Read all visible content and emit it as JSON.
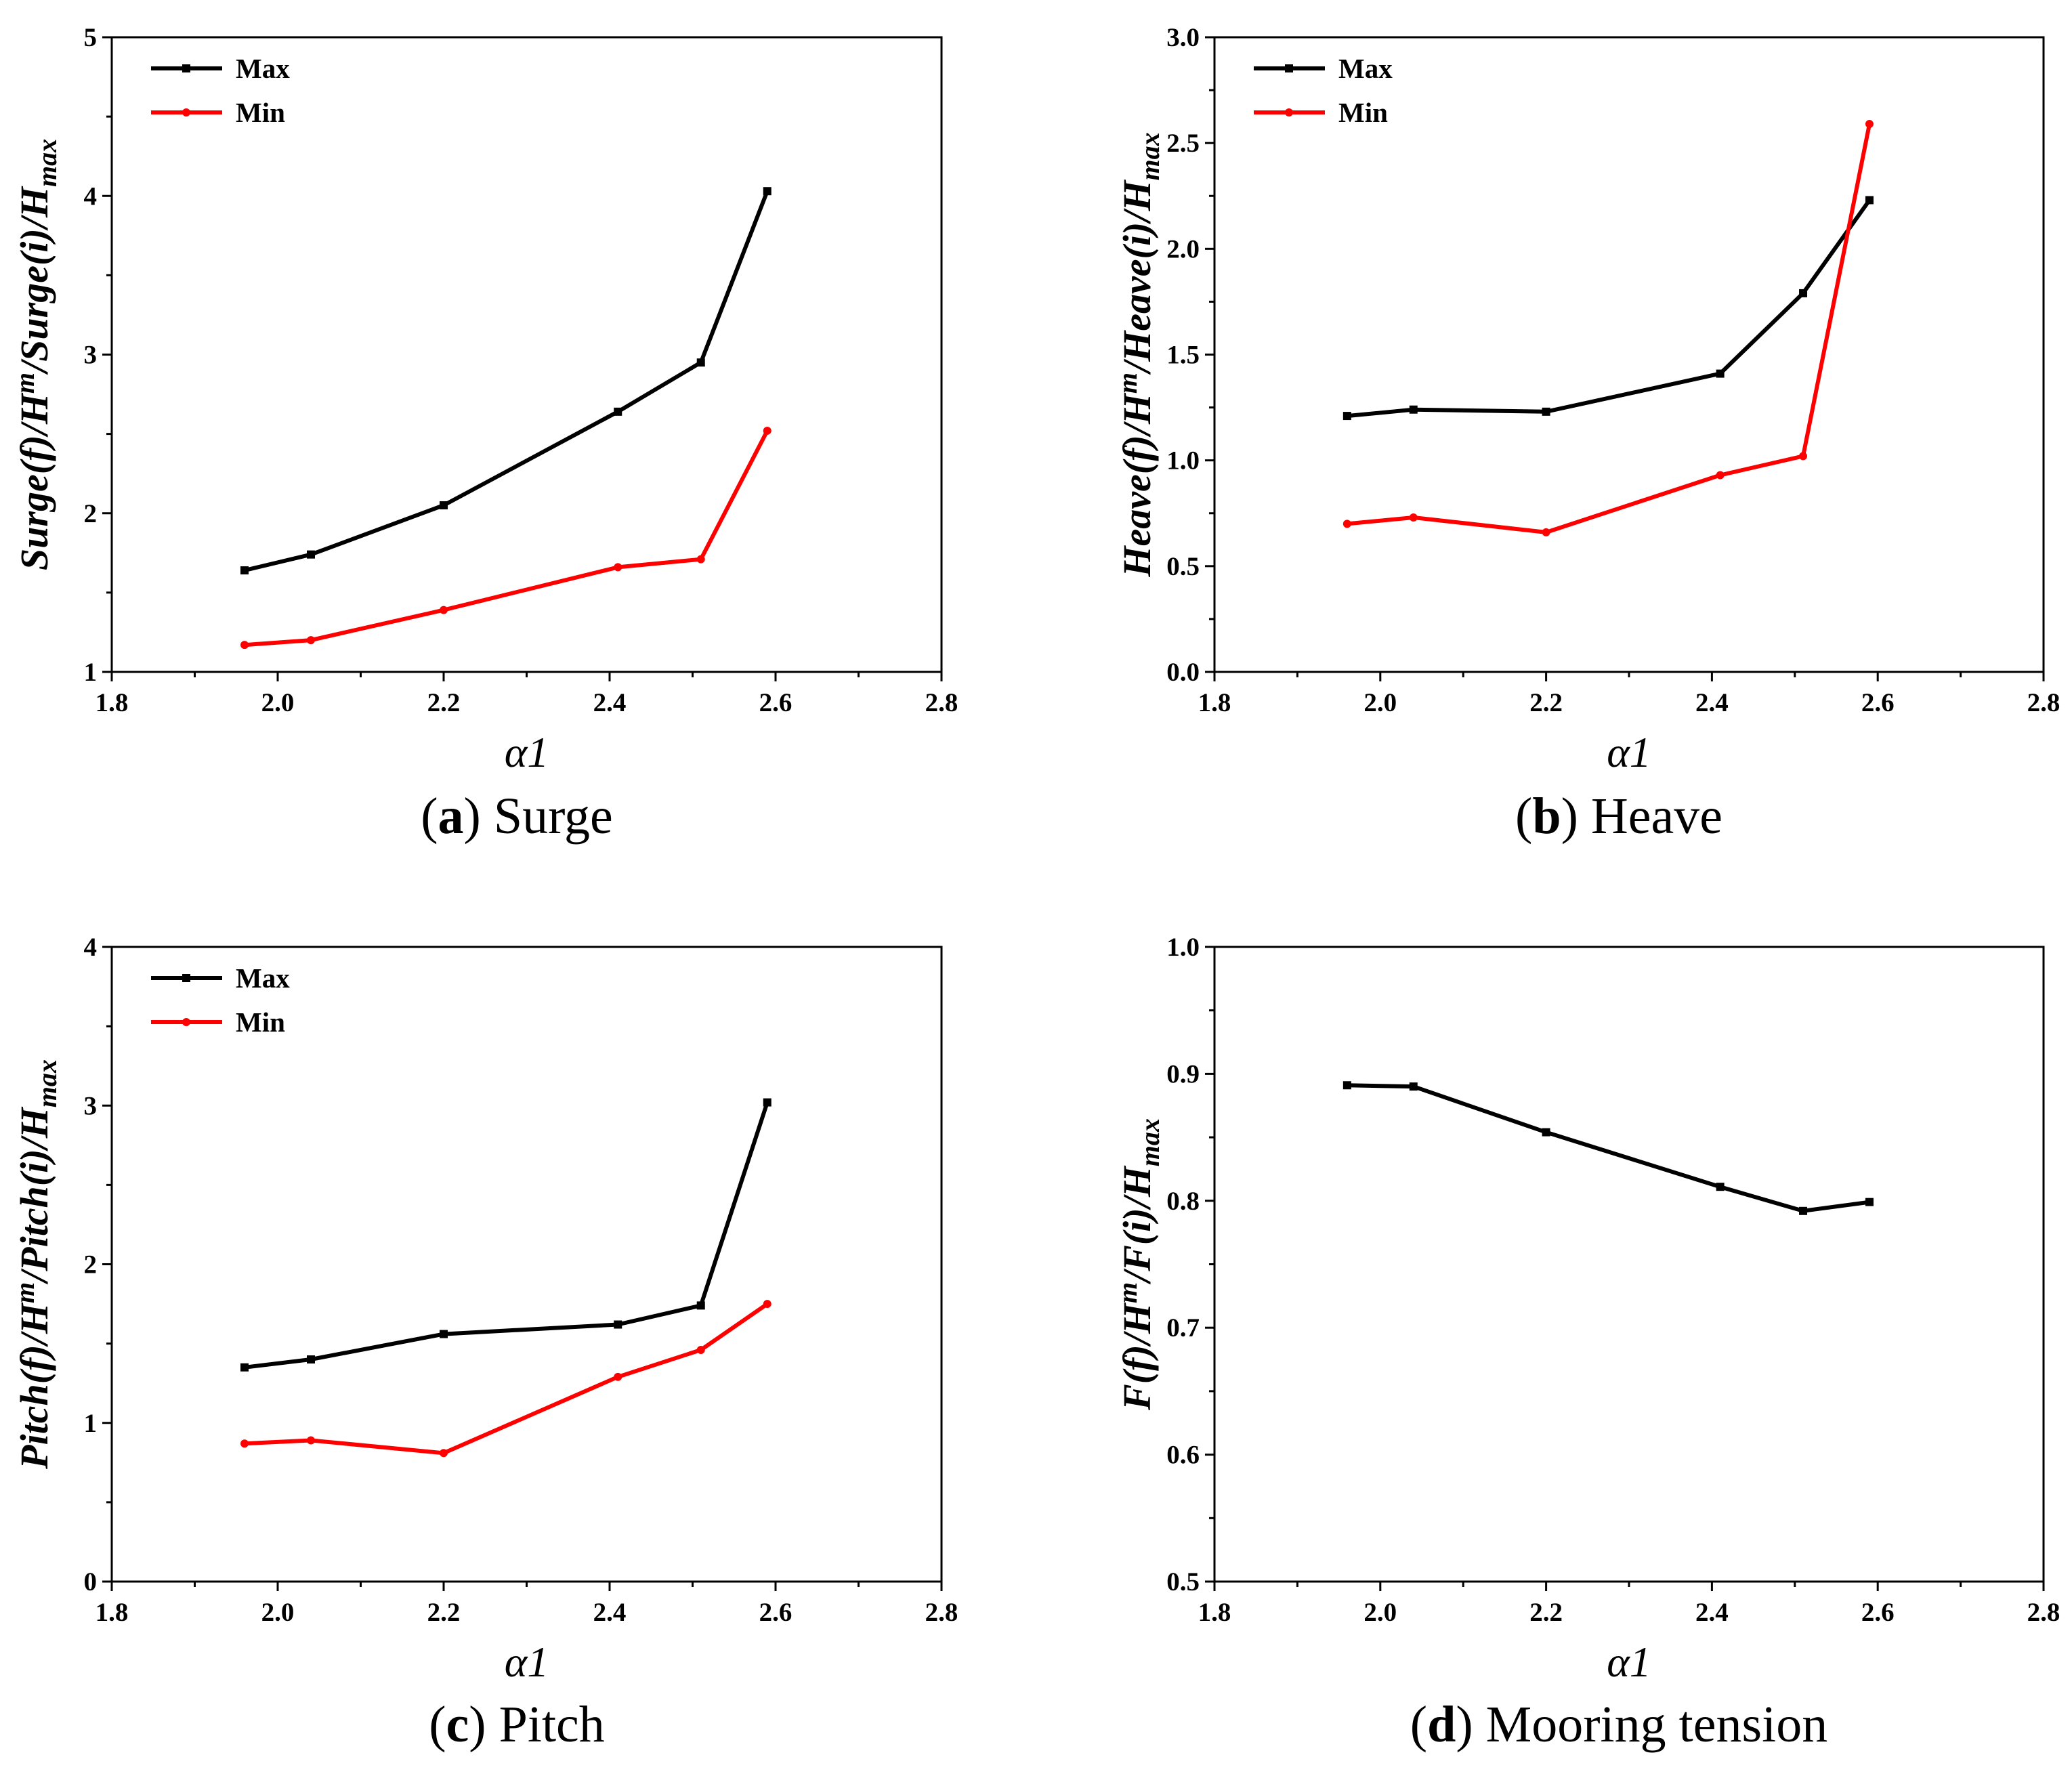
{
  "chart_data": [
    {
      "type": "line",
      "caption_letter": "a",
      "caption_text": "Surge",
      "ylabel": "Surge(f)/H^m/Surge(i)/H_max",
      "xlabel": "α1",
      "xlim": [
        1.8,
        2.8
      ],
      "ylim": [
        1,
        5
      ],
      "x_ticks": [
        "1.8",
        "2.0",
        "2.2",
        "2.4",
        "2.6",
        "2.8"
      ],
      "y_ticks": [
        "1",
        "2",
        "3",
        "4",
        "5"
      ],
      "legend": "top-left",
      "grid": false,
      "series": [
        {
          "name": "Max",
          "color": "#000000",
          "marker": "square",
          "x": [
            1.96,
            2.04,
            2.2,
            2.41,
            2.51,
            2.59
          ],
          "y": [
            1.64,
            1.74,
            2.05,
            2.64,
            2.95,
            4.03
          ]
        },
        {
          "name": "Min",
          "color": "#ff0000",
          "marker": "circle",
          "x": [
            1.96,
            2.04,
            2.2,
            2.41,
            2.51,
            2.59
          ],
          "y": [
            1.17,
            1.2,
            1.39,
            1.66,
            1.71,
            2.52
          ]
        }
      ]
    },
    {
      "type": "line",
      "caption_letter": "b",
      "caption_text": "Heave",
      "ylabel": "Heave(f)/H^m/Heave(i)/H_max",
      "xlabel": "α1",
      "xlim": [
        1.8,
        2.8
      ],
      "ylim": [
        0.0,
        3.0
      ],
      "x_ticks": [
        "1.8",
        "2.0",
        "2.2",
        "2.4",
        "2.6",
        "2.8"
      ],
      "y_ticks": [
        "0.0",
        "0.5",
        "1.0",
        "1.5",
        "2.0",
        "2.5",
        "3.0"
      ],
      "legend": "top-left",
      "grid": false,
      "series": [
        {
          "name": "Max",
          "color": "#000000",
          "marker": "square",
          "x": [
            1.96,
            2.04,
            2.2,
            2.41,
            2.51,
            2.59
          ],
          "y": [
            1.21,
            1.24,
            1.23,
            1.41,
            1.79,
            2.23
          ]
        },
        {
          "name": "Min",
          "color": "#ff0000",
          "marker": "circle",
          "x": [
            1.96,
            2.04,
            2.2,
            2.41,
            2.51,
            2.59
          ],
          "y": [
            0.7,
            0.73,
            0.66,
            0.93,
            1.02,
            2.59
          ]
        }
      ]
    },
    {
      "type": "line",
      "caption_letter": "c",
      "caption_text": "Pitch",
      "ylabel": "Pitch(f)/H^m/Pitch(i)/H_max",
      "xlabel": "α1",
      "xlim": [
        1.8,
        2.8
      ],
      "ylim": [
        0,
        4
      ],
      "x_ticks": [
        "1.8",
        "2.0",
        "2.2",
        "2.4",
        "2.6",
        "2.8"
      ],
      "y_ticks": [
        "0",
        "1",
        "2",
        "3",
        "4"
      ],
      "legend": "top-left",
      "grid": false,
      "series": [
        {
          "name": "Max",
          "color": "#000000",
          "marker": "square",
          "x": [
            1.96,
            2.04,
            2.2,
            2.41,
            2.51,
            2.59
          ],
          "y": [
            1.35,
            1.4,
            1.56,
            1.62,
            1.74,
            3.02
          ]
        },
        {
          "name": "Min",
          "color": "#ff0000",
          "marker": "circle",
          "x": [
            1.96,
            2.04,
            2.2,
            2.41,
            2.51,
            2.59
          ],
          "y": [
            0.87,
            0.89,
            0.81,
            1.29,
            1.46,
            1.75
          ]
        }
      ]
    },
    {
      "type": "line",
      "caption_letter": "d",
      "caption_text": "Mooring tension",
      "ylabel": "F(f)/H^m/F(i)/H_max",
      "xlabel": "α1",
      "xlim": [
        1.8,
        2.8
      ],
      "ylim": [
        0.5,
        1.0
      ],
      "x_ticks": [
        "1.8",
        "2.0",
        "2.2",
        "2.4",
        "2.6",
        "2.8"
      ],
      "y_ticks": [
        "0.5",
        "0.6",
        "0.7",
        "0.8",
        "0.9",
        "1.0"
      ],
      "legend": "none",
      "grid": false,
      "series": [
        {
          "name": "",
          "color": "#000000",
          "marker": "square",
          "x": [
            1.96,
            2.04,
            2.2,
            2.41,
            2.51,
            2.59
          ],
          "y": [
            0.891,
            0.89,
            0.854,
            0.811,
            0.792,
            0.799
          ]
        }
      ]
    }
  ]
}
